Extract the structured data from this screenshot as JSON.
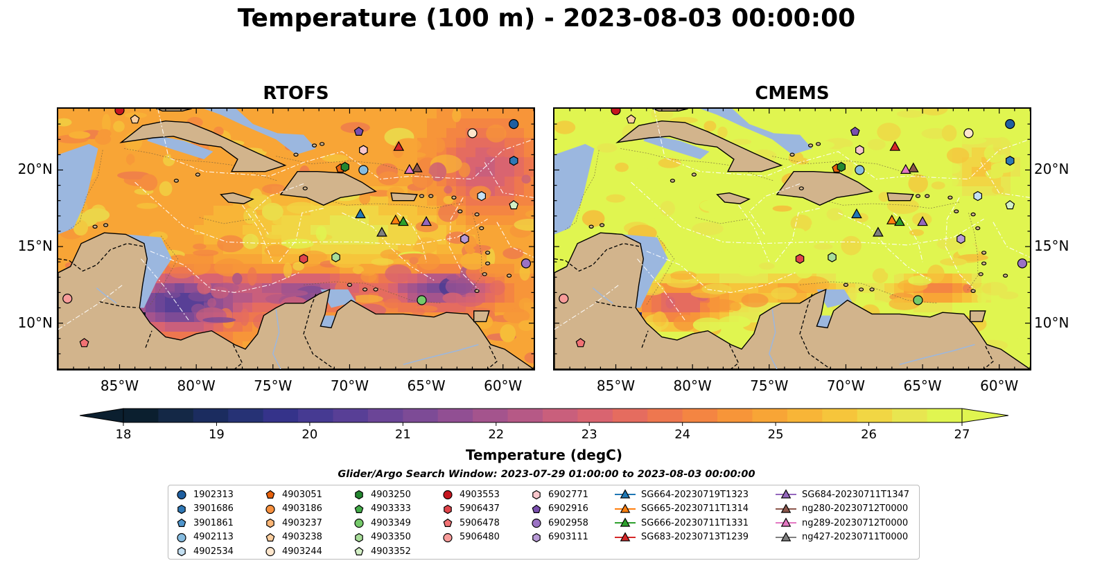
{
  "title": "Temperature (100 m) - 2023-08-03 00:00:00",
  "panels": [
    {
      "title": "RTOFS",
      "palette_bias": 0.0
    },
    {
      "title": "CMEMS",
      "palette_bias": 0.35
    }
  ],
  "axes": {
    "lon_ticks": [
      "85°W",
      "80°W",
      "75°W",
      "70°W",
      "65°W",
      "60°W"
    ],
    "lat_ticks": [
      "20°N",
      "15°N",
      "10°N"
    ],
    "lon_range": [
      -89,
      -58
    ],
    "lat_range": [
      7,
      24
    ]
  },
  "colorbar": {
    "ticks": [
      "18",
      "19",
      "20",
      "21",
      "22",
      "23",
      "24",
      "25",
      "26",
      "27"
    ],
    "range": [
      18,
      27
    ],
    "extend": "both",
    "label": "Temperature (degC)",
    "colors": [
      "#0b1f2f",
      "#142846",
      "#1b2c5f",
      "#263275",
      "#35338a",
      "#463a92",
      "#583f96",
      "#6b4597",
      "#7d4b96",
      "#914f93",
      "#a4548d",
      "#b65986",
      "#c95f7c",
      "#d96470",
      "#e56c5f",
      "#ee774f",
      "#f48542",
      "#f79539",
      "#f8a536",
      "#f8b537",
      "#f6c53b",
      "#f1d644",
      "#e8e650",
      "#e0f550"
    ]
  },
  "search_window": "Glider/Argo Search Window: 2023-07-29 01:00:00 to 2023-08-03 00:00:00",
  "legend": {
    "columns": [
      [
        {
          "label": "1902313",
          "marker": "circle",
          "color": "#1f5fa0"
        },
        {
          "label": "3901686",
          "marker": "hexagon",
          "color": "#2f78b6"
        },
        {
          "label": "3901861",
          "marker": "pentagon",
          "color": "#4f95cc"
        },
        {
          "label": "4902113",
          "marker": "circle",
          "color": "#86bce0"
        },
        {
          "label": "4902534",
          "marker": "hexagon",
          "color": "#c4e0f2"
        }
      ],
      [
        {
          "label": "4903051",
          "marker": "pentagon",
          "color": "#e8620c"
        },
        {
          "label": "4903186",
          "marker": "circle",
          "color": "#f7913f"
        },
        {
          "label": "4903237",
          "marker": "hexagon",
          "color": "#fbb676"
        },
        {
          "label": "4903238",
          "marker": "pentagon",
          "color": "#fcce9e"
        },
        {
          "label": "4903244",
          "marker": "circle",
          "color": "#fde6cc"
        }
      ],
      [
        {
          "label": "4903250",
          "marker": "hexagon",
          "color": "#23862f"
        },
        {
          "label": "4903333",
          "marker": "pentagon",
          "color": "#43ab48"
        },
        {
          "label": "4903349",
          "marker": "circle",
          "color": "#75c96a"
        },
        {
          "label": "4903350",
          "marker": "hexagon",
          "color": "#a8dd99"
        },
        {
          "label": "4903352",
          "marker": "pentagon",
          "color": "#d3f0c6"
        }
      ],
      [
        {
          "label": "4903553",
          "marker": "circle",
          "color": "#c5161f"
        },
        {
          "label": "5906437",
          "marker": "hexagon",
          "color": "#e0444a"
        },
        {
          "label": "5906478",
          "marker": "pentagon",
          "color": "#f17274"
        },
        {
          "label": "5906480",
          "marker": "circle",
          "color": "#f89c9a"
        }
      ],
      [
        {
          "label": "6902771",
          "marker": "hexagon",
          "color": "#f9c7cc"
        },
        {
          "label": "6902916",
          "marker": "pentagon",
          "color": "#7a4fae"
        },
        {
          "label": "6902958",
          "marker": "circle",
          "color": "#9b72c4"
        },
        {
          "label": "6903111",
          "marker": "hexagon",
          "color": "#b89ad6"
        }
      ],
      [
        {
          "label": "SG664-20230719T1323",
          "marker": "triangle",
          "color": "#1f77b4"
        },
        {
          "label": "SG665-20230711T1314",
          "marker": "triangle",
          "color": "#ff7f0e"
        },
        {
          "label": "SG666-20230711T1331",
          "marker": "triangle",
          "color": "#2ca02c"
        },
        {
          "label": "SG683-20230713T1239",
          "marker": "triangle",
          "color": "#d62728"
        }
      ],
      [
        {
          "label": "SG684-20230711T1347",
          "marker": "triangle",
          "color": "#9467bd"
        },
        {
          "label": "ng280-20230712T0000",
          "marker": "triangle",
          "color": "#8c564b"
        },
        {
          "label": "ng289-20230712T0000",
          "marker": "triangle",
          "color": "#e377c2"
        },
        {
          "label": "ng427-20230711T0000",
          "marker": "triangle",
          "color": "#7f7f7f"
        }
      ]
    ]
  },
  "platforms": [
    {
      "label": "1902313",
      "lon": -59.3,
      "lat": 23.0
    },
    {
      "label": "3901686",
      "lon": -59.3,
      "lat": 20.6
    },
    {
      "label": "4902113",
      "lon": -69.1,
      "lat": 20.0
    },
    {
      "label": "4902534",
      "lon": -61.4,
      "lat": 18.3
    },
    {
      "label": "4903051",
      "lon": -70.6,
      "lat": 20.1
    },
    {
      "label": "4903237",
      "lon": -69.1,
      "lat": 21.3
    },
    {
      "label": "4903238",
      "lon": -84.0,
      "lat": 23.3
    },
    {
      "label": "4903244",
      "lon": -62.0,
      "lat": 22.4
    },
    {
      "label": "4903250",
      "lon": -70.3,
      "lat": 20.2
    },
    {
      "label": "4903349",
      "lon": -65.3,
      "lat": 11.5
    },
    {
      "label": "4903350",
      "lon": -70.9,
      "lat": 14.3
    },
    {
      "label": "4903352",
      "lon": -59.3,
      "lat": 17.7
    },
    {
      "label": "4903553",
      "lon": -85.0,
      "lat": 23.9
    },
    {
      "label": "5906437",
      "lon": -73.0,
      "lat": 14.2
    },
    {
      "label": "5906478",
      "lon": -87.3,
      "lat": 8.7
    },
    {
      "label": "5906480",
      "lon": -88.4,
      "lat": 11.6
    },
    {
      "label": "6902771",
      "lon": -69.1,
      "lat": 21.3
    },
    {
      "label": "6902916",
      "lon": -69.4,
      "lat": 22.5
    },
    {
      "label": "6902958",
      "lon": -58.5,
      "lat": 13.9
    },
    {
      "label": "6903111",
      "lon": -62.5,
      "lat": 15.5
    },
    {
      "label": "SG664-20230719T1323",
      "lon": -69.3,
      "lat": 17.1
    },
    {
      "label": "SG665-20230711T1314",
      "lon": -67.0,
      "lat": 16.7
    },
    {
      "label": "SG666-20230711T1331",
      "lon": -66.5,
      "lat": 16.6
    },
    {
      "label": "SG683-20230713T1239",
      "lon": -66.8,
      "lat": 21.5
    },
    {
      "label": "SG684-20230711T1347",
      "lon": -65.0,
      "lat": 16.6
    },
    {
      "label": "ng280-20230712T0000",
      "lon": -65.6,
      "lat": 20.1
    },
    {
      "label": "ng289-20230712T0000",
      "lon": -66.1,
      "lat": 20.0
    },
    {
      "label": "ng427-20230711T0000",
      "lon": -67.9,
      "lat": 15.9
    }
  ]
}
